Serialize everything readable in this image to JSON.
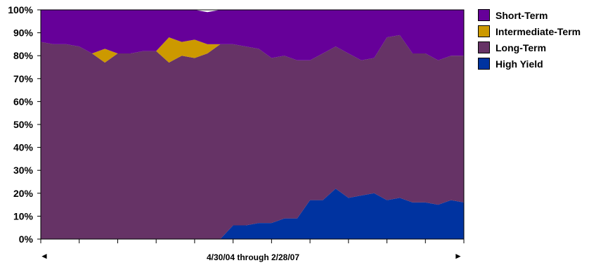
{
  "chart_data": {
    "type": "area",
    "stacked": true,
    "percent": true,
    "xlabel": "4/30/04 through 2/28/07",
    "ylim": [
      0,
      100
    ],
    "y_ticks": [
      "0%",
      "10%",
      "20%",
      "30%",
      "40%",
      "50%",
      "60%",
      "70%",
      "80%",
      "90%",
      "100%"
    ],
    "legend_position": "right",
    "grid": false,
    "series": [
      {
        "name": "High Yield",
        "color": "#0033A0",
        "values": [
          0,
          0,
          0,
          0,
          0,
          0,
          0,
          0,
          0,
          0,
          0,
          0,
          0,
          0,
          0,
          6,
          6,
          7,
          7,
          9,
          9,
          17,
          17,
          22,
          18,
          19,
          20,
          17,
          18,
          16,
          16,
          15,
          17,
          16
        ]
      },
      {
        "name": "Long-Term",
        "color": "#663366",
        "values": [
          86,
          85,
          85,
          84,
          81,
          77,
          81,
          81,
          82,
          82,
          77,
          80,
          79,
          81,
          85,
          79,
          78,
          76,
          72,
          71,
          69,
          61,
          64,
          62,
          63,
          59,
          59,
          71,
          71,
          65,
          65,
          63,
          63,
          64
        ]
      },
      {
        "name": "Intermediate-Term",
        "color": "#CC9900",
        "values": [
          0,
          0,
          0,
          0,
          0,
          6,
          0,
          0,
          0,
          0,
          11,
          6,
          8,
          4,
          0,
          0,
          0,
          0,
          0,
          0,
          0,
          0,
          0,
          0,
          0,
          0,
          0,
          0,
          0,
          0,
          0,
          0,
          0,
          0
        ]
      },
      {
        "name": "Short-Term",
        "color": "#660099",
        "values": [
          14,
          15,
          15,
          16,
          19,
          17,
          19,
          19,
          18,
          18,
          12,
          14,
          13,
          14,
          15,
          15,
          16,
          17,
          21,
          20,
          22,
          22,
          19,
          16,
          19,
          22,
          21,
          12,
          11,
          19,
          19,
          22,
          20,
          20
        ]
      }
    ]
  },
  "legend": [
    {
      "label": "Short-Term",
      "color": "#660099"
    },
    {
      "label": "Intermediate-Term",
      "color": "#CC9900"
    },
    {
      "label": "Long-Term",
      "color": "#663366"
    },
    {
      "label": "High Yield",
      "color": "#0033A0"
    }
  ],
  "nav": {
    "prev_arrow": "◄",
    "next_arrow": "►",
    "prev_icon": "left-arrow-icon",
    "next_icon": "right-arrow-icon"
  }
}
